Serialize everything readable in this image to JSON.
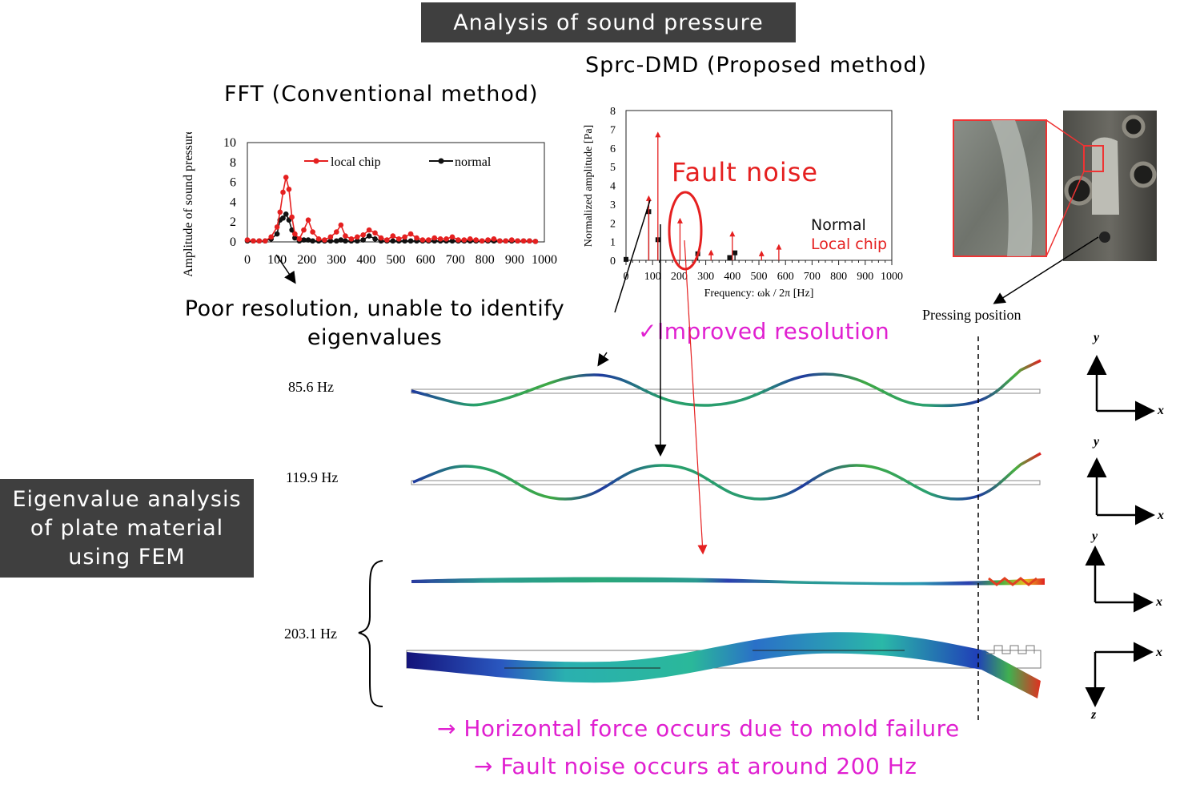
{
  "header": {
    "title": "Analysis of sound pressure"
  },
  "left_banner": {
    "line1": "Eigenvalue analysis",
    "line2": "of plate material",
    "line3": "using FEM"
  },
  "fft": {
    "title": "FFT (Conventional method)",
    "caption_line1": "Poor resolution, unable to identify",
    "caption_line2": "eigenvalues"
  },
  "dmd": {
    "title": "Sprc-DMD (Proposed method)",
    "fault_label": "Fault noise",
    "legend_normal": "Normal",
    "legend_local": "Local chip",
    "improved": "✓Improved resolution"
  },
  "photo": {
    "label": "Pressing position"
  },
  "modes": {
    "m1": "85.6 Hz",
    "m2": "119.9 Hz",
    "m3": "203.1 Hz"
  },
  "axes": {
    "x": "x",
    "y": "y",
    "z": "z"
  },
  "conclusion": {
    "line1": "→ Horizontal force occurs due to mold failure",
    "line2": "→ Fault noise occurs at around 200 Hz"
  },
  "colors": {
    "red": "#e52020",
    "magenta": "#e020d0",
    "banner": "#3f3f3f"
  },
  "chart_data": [
    {
      "type": "line",
      "title": "",
      "xlabel": "",
      "ylabel": "Amplitude of  sound pressure [Pa]",
      "xlim": [
        0,
        1000
      ],
      "ylim": [
        0,
        10
      ],
      "xticks": [
        "0",
        "100",
        "200",
        "300",
        "400",
        "500",
        "600",
        "700",
        "800",
        "900",
        "1000"
      ],
      "yticks": [
        "0",
        "2",
        "4",
        "6",
        "8",
        "10"
      ],
      "series": [
        {
          "name": "local chip",
          "color": "#e52020",
          "x": [
            0,
            20,
            40,
            60,
            80,
            100,
            110,
            120,
            130,
            140,
            150,
            160,
            175,
            190,
            205,
            220,
            240,
            260,
            280,
            300,
            315,
            330,
            350,
            370,
            390,
            410,
            430,
            450,
            470,
            490,
            510,
            530,
            550,
            570,
            590,
            610,
            630,
            650,
            670,
            690,
            710,
            730,
            750,
            770,
            790,
            810,
            830,
            850,
            870,
            890,
            910,
            930,
            950,
            970
          ],
          "y": [
            0.2,
            0.1,
            0.1,
            0.1,
            0.5,
            1.5,
            3.0,
            5.0,
            6.5,
            5.3,
            2.5,
            0.8,
            0.3,
            1.2,
            2.2,
            1.0,
            0.3,
            0.2,
            0.5,
            1.0,
            1.7,
            0.6,
            0.3,
            0.5,
            0.7,
            1.2,
            0.9,
            0.4,
            0.2,
            0.6,
            0.3,
            0.5,
            0.8,
            0.4,
            0.2,
            0.2,
            0.4,
            0.3,
            0.3,
            0.5,
            0.2,
            0.2,
            0.3,
            0.2,
            0.1,
            0.2,
            0.3,
            0.1,
            0.1,
            0.2,
            0.1,
            0.1,
            0.1,
            0.05
          ]
        },
        {
          "name": "normal",
          "color": "#111111",
          "x": [
            0,
            20,
            40,
            60,
            80,
            100,
            110,
            120,
            130,
            140,
            150,
            160,
            175,
            190,
            205,
            220,
            240,
            260,
            280,
            300,
            315,
            330,
            350,
            370,
            390,
            410,
            430,
            450,
            470,
            490,
            510,
            530,
            550,
            570,
            590,
            610,
            630,
            650,
            670,
            690,
            710,
            730,
            750,
            770,
            790,
            810,
            830,
            850,
            870,
            890,
            910,
            930,
            950,
            970
          ],
          "y": [
            0.1,
            0.1,
            0.1,
            0.1,
            0.3,
            0.8,
            2.2,
            2.4,
            2.8,
            2.2,
            1.2,
            0.4,
            0.1,
            0.2,
            0.2,
            0.1,
            0.1,
            0.1,
            0.1,
            0.1,
            0.2,
            0.1,
            0.1,
            0.1,
            0.2,
            0.6,
            0.3,
            0.1,
            0.1,
            0.1,
            0.1,
            0.1,
            0.1,
            0.1,
            0.1,
            0.1,
            0.1,
            0.1,
            0.1,
            0.1,
            0.1,
            0.1,
            0.1,
            0.1,
            0.1,
            0.1,
            0.1,
            0.1,
            0.1,
            0.1,
            0.1,
            0.1,
            0.1,
            0.05
          ]
        }
      ]
    },
    {
      "type": "scatter",
      "title": "",
      "xlabel": "Frequency: ωk / 2π [Hz]",
      "ylabel": "Normalized amplitude [Pa]",
      "xlim": [
        0,
        1000
      ],
      "ylim": [
        0,
        8
      ],
      "xticks": [
        "0",
        "100",
        "200",
        "300",
        "400",
        "500",
        "600",
        "700",
        "800",
        "900",
        "1000"
      ],
      "yticks": [
        "0",
        "1",
        "2",
        "3",
        "4",
        "5",
        "6",
        "7",
        "8"
      ],
      "series": [
        {
          "name": "Normal",
          "color": "#111111",
          "x": [
            0,
            85.6,
            119.9,
            270,
            390,
            410
          ],
          "y": [
            0.05,
            2.6,
            1.1,
            0.35,
            0.15,
            0.4
          ]
        },
        {
          "name": "Local chip",
          "color": "#e52020",
          "x": [
            85.6,
            119.9,
            203.1,
            320,
            400,
            510,
            575
          ],
          "y": [
            3.3,
            6.7,
            2.1,
            0.4,
            1.4,
            0.35,
            0.7
          ]
        }
      ]
    }
  ]
}
